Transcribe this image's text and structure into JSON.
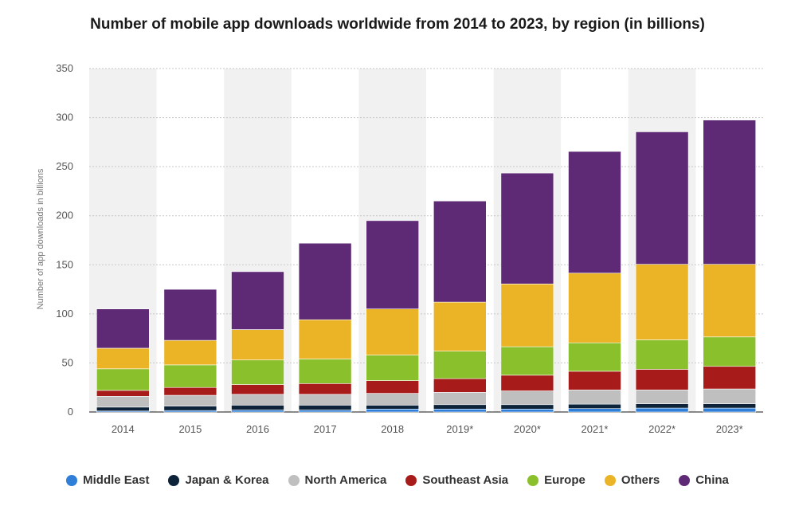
{
  "chart_data": {
    "type": "bar",
    "stacked": true,
    "title": "Number of mobile app downloads worldwide from 2014 to 2023, by region (in billions)",
    "xlabel": "",
    "ylabel": "Number of app downloads in billions",
    "ylim": [
      0,
      350
    ],
    "yticks": [
      0,
      50,
      100,
      150,
      200,
      250,
      300,
      350
    ],
    "grid": true,
    "legend_position": "bottom",
    "categories": [
      "2014",
      "2015",
      "2016",
      "2017",
      "2018",
      "2019*",
      "2020*",
      "2021*",
      "2022*",
      "2023*"
    ],
    "series": [
      {
        "name": "Middle East",
        "color": "#2f7ed8",
        "values": [
          1,
          1.5,
          2,
          2,
          3,
          3,
          3,
          3.5,
          4,
          4
        ]
      },
      {
        "name": "Japan & Korea",
        "color": "#0d233a",
        "values": [
          4,
          4.5,
          5,
          5,
          4,
          4.5,
          4.5,
          4.5,
          4.5,
          4.5
        ]
      },
      {
        "name": "North America",
        "color": "#bfbfbf",
        "values": [
          11,
          11,
          11,
          11,
          12,
          12.5,
          14,
          14.5,
          14,
          15
        ]
      },
      {
        "name": "Southeast Asia",
        "color": "#a81b1b",
        "values": [
          6,
          8,
          10,
          11,
          13,
          14,
          16,
          19,
          21,
          23
        ]
      },
      {
        "name": "Europe",
        "color": "#8ac02b",
        "values": [
          22,
          23,
          25,
          25,
          26,
          28,
          29,
          29,
          30,
          30
        ]
      },
      {
        "name": "Others",
        "color": "#ebb427",
        "values": [
          21,
          25,
          31,
          40,
          47,
          50,
          64,
          71,
          77,
          74
        ]
      },
      {
        "name": "China",
        "color": "#5e2a75",
        "values": [
          40,
          52,
          59,
          78,
          90,
          103,
          113,
          124,
          135,
          147
        ]
      }
    ]
  }
}
